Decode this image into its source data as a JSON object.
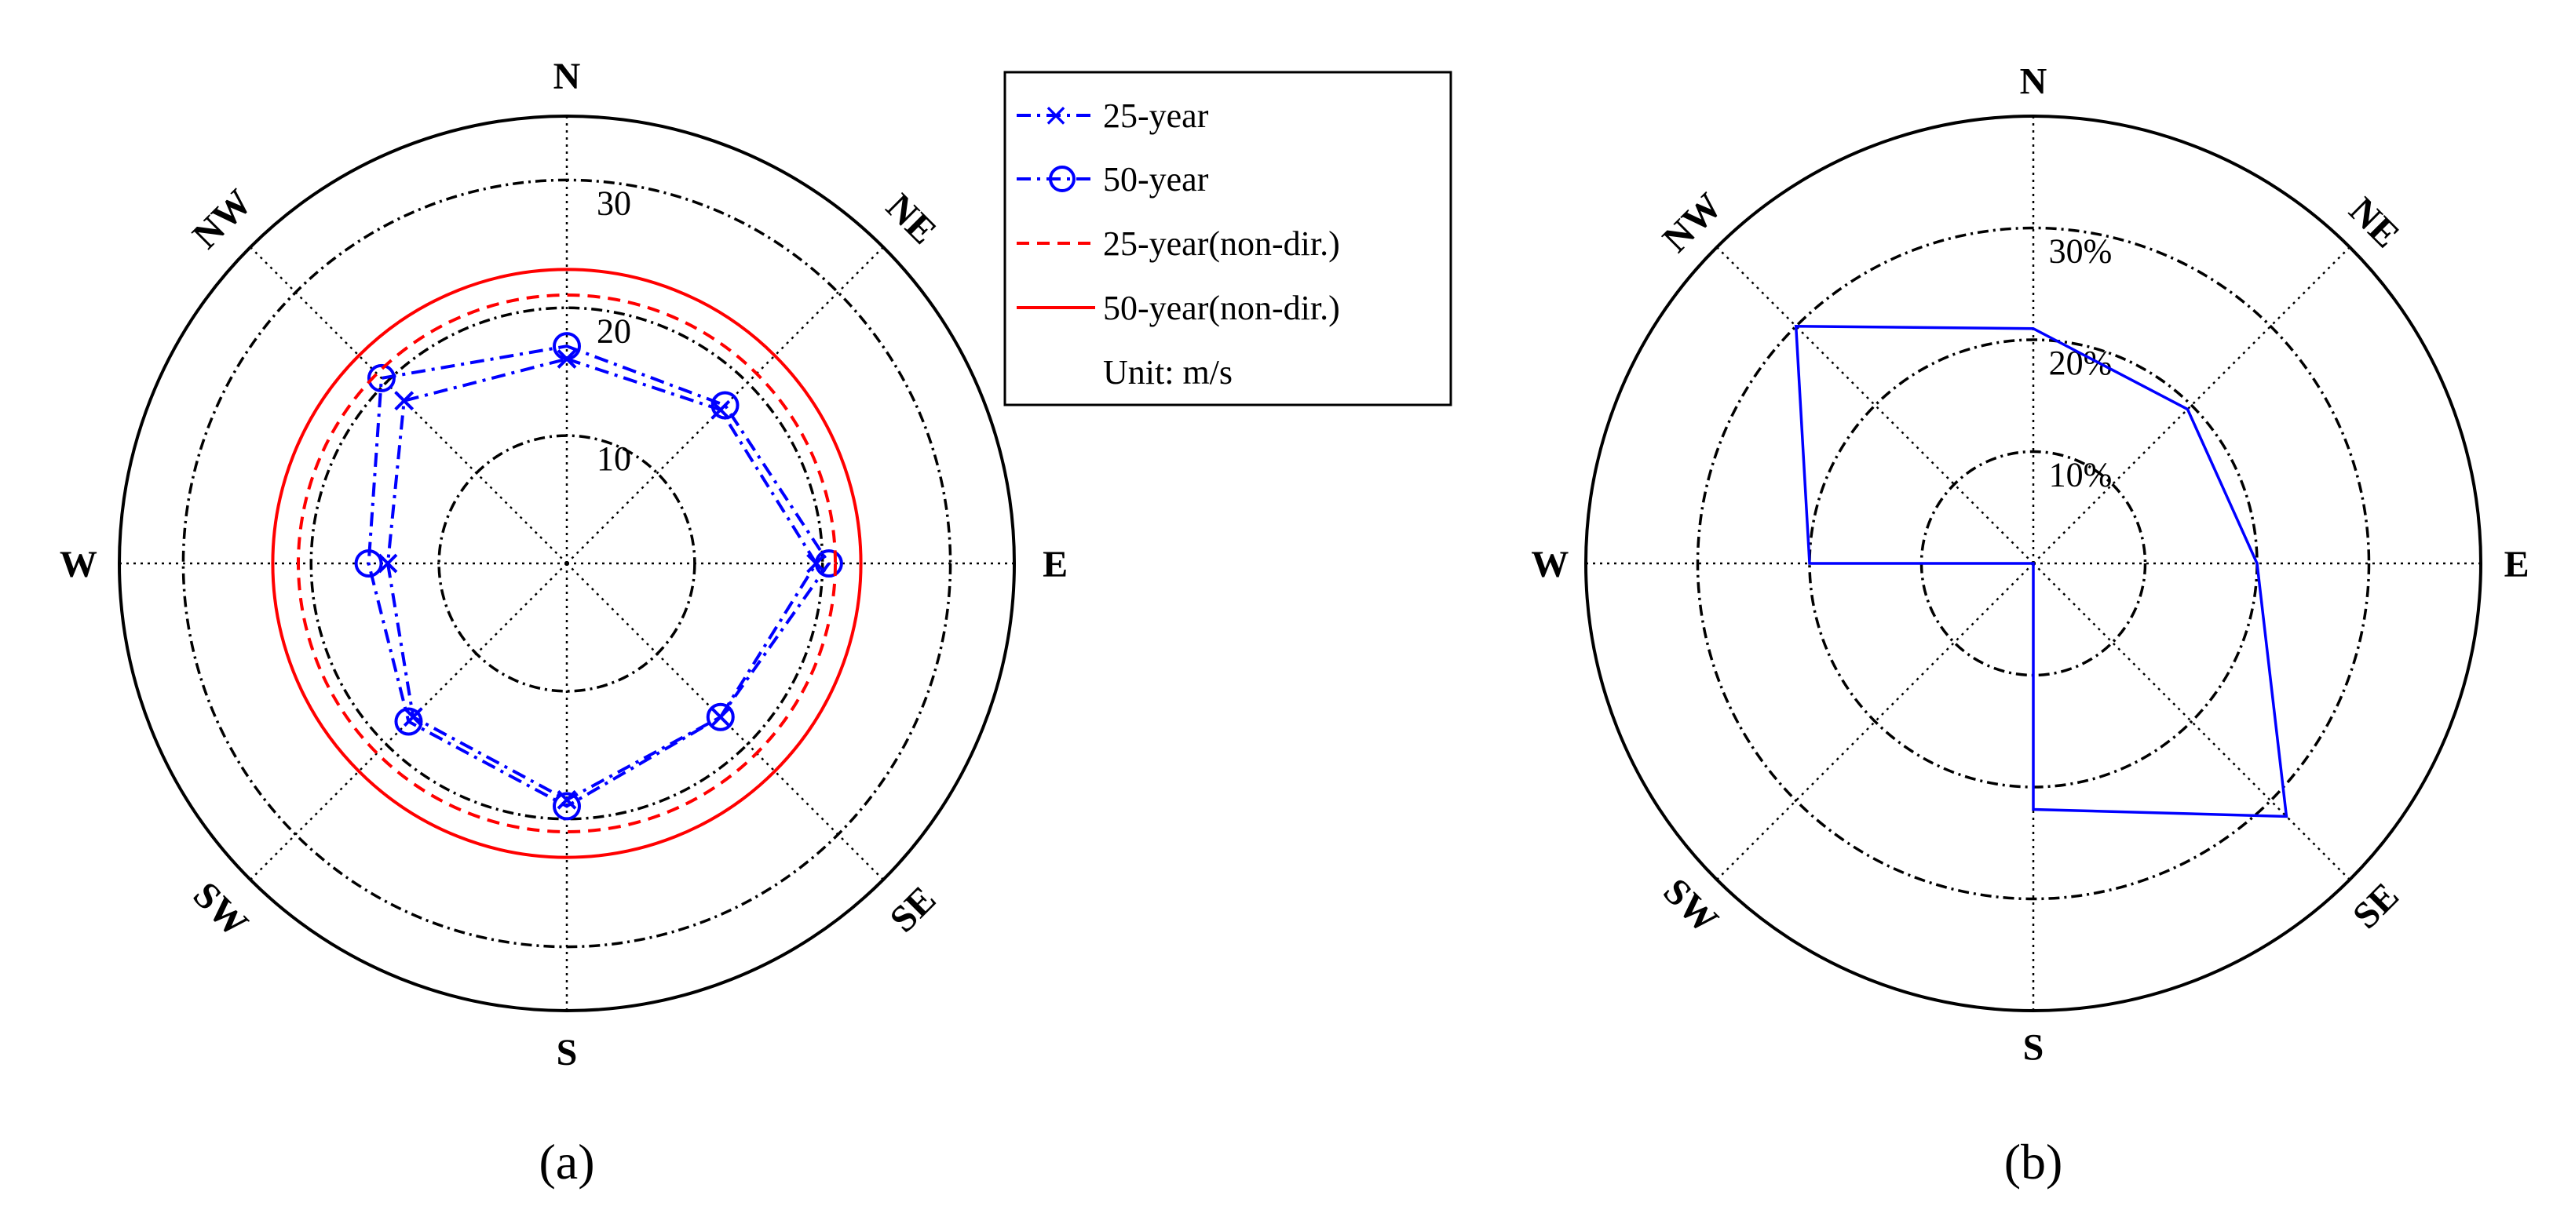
{
  "chart_data": [
    {
      "type": "radar",
      "panel_label": "(a)",
      "directions": [
        "N",
        "NE",
        "E",
        "SE",
        "S",
        "SW",
        "W",
        "NW"
      ],
      "radial_ticks": [
        "10",
        "20",
        "30"
      ],
      "rlim": [
        0,
        35
      ],
      "grid": true,
      "legend_position": "top-right",
      "series": [
        {
          "name": "25-year",
          "color": "#0000ff",
          "style": "dash-dot",
          "marker": "x",
          "values": [
            16.0,
            17.0,
            19.5,
            17.0,
            18.5,
            17.0,
            14.0,
            18.0
          ]
        },
        {
          "name": "50-year",
          "color": "#0000ff",
          "style": "dash-dot",
          "marker": "o",
          "values": [
            17.0,
            17.5,
            20.5,
            17.0,
            19.0,
            17.5,
            15.5,
            20.5
          ]
        },
        {
          "name": "25-year(non-dir.)",
          "color": "#ff0000",
          "style": "dashed",
          "constant": 21.0
        },
        {
          "name": "50-year(non-dir.)",
          "color": "#ff0000",
          "style": "solid",
          "constant": 23.0
        }
      ],
      "unit_text": "Unit:  m/s"
    },
    {
      "type": "radar",
      "panel_label": "(b)",
      "directions": [
        "N",
        "NE",
        "E",
        "SE",
        "S",
        "SW",
        "W",
        "NW"
      ],
      "radial_ticks": [
        "10%",
        "20%",
        "30%"
      ],
      "rlim": [
        0,
        40
      ],
      "grid": true,
      "series": [
        {
          "color": "#0000ff",
          "style": "solid",
          "values": [
            21.0,
            19.5,
            20.0,
            32.0,
            22.0,
            0,
            20.0,
            30.0
          ]
        }
      ]
    }
  ]
}
